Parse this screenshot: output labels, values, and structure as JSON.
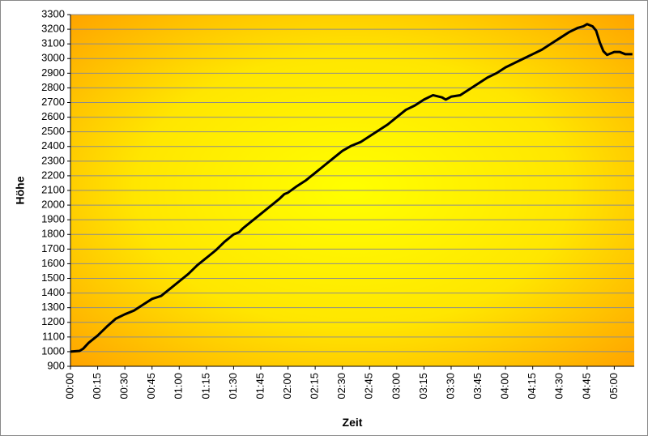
{
  "chart_data": {
    "type": "line",
    "x_label": "Zeit",
    "y_label": "Höhe",
    "x": [
      0,
      5,
      7,
      10,
      15,
      20,
      25,
      30,
      35,
      40,
      45,
      50,
      52,
      55,
      60,
      65,
      70,
      75,
      80,
      85,
      90,
      93,
      95,
      100,
      105,
      110,
      115,
      118,
      120,
      125,
      130,
      135,
      140,
      145,
      150,
      155,
      160,
      165,
      170,
      175,
      180,
      185,
      190,
      195,
      200,
      205,
      207,
      210,
      215,
      220,
      225,
      230,
      235,
      240,
      245,
      250,
      255,
      260,
      265,
      270,
      275,
      280,
      283,
      285,
      288,
      290,
      292,
      294,
      296,
      300,
      303,
      306,
      310
    ],
    "series": [
      {
        "name": "Höhe",
        "color": "#000000",
        "values": [
          1000,
          1005,
          1020,
          1060,
          1110,
          1170,
          1225,
          1255,
          1280,
          1320,
          1360,
          1380,
          1400,
          1430,
          1480,
          1530,
          1590,
          1640,
          1690,
          1750,
          1800,
          1815,
          1840,
          1890,
          1940,
          1990,
          2040,
          2075,
          2085,
          2130,
          2170,
          2220,
          2270,
          2320,
          2370,
          2405,
          2430,
          2470,
          2510,
          2550,
          2600,
          2650,
          2680,
          2720,
          2750,
          2735,
          2720,
          2740,
          2750,
          2790,
          2830,
          2870,
          2900,
          2940,
          2970,
          3000,
          3030,
          3060,
          3100,
          3140,
          3180,
          3210,
          3220,
          3235,
          3220,
          3190,
          3110,
          3050,
          3025,
          3045,
          3045,
          3030,
          3030
        ]
      }
    ],
    "xlim": [
      0,
      311
    ],
    "xticks": [
      {
        "value": 0,
        "label": "00:00"
      },
      {
        "value": 15,
        "label": "00:15"
      },
      {
        "value": 30,
        "label": "00:30"
      },
      {
        "value": 45,
        "label": "00:45"
      },
      {
        "value": 60,
        "label": "01:00"
      },
      {
        "value": 75,
        "label": "01:15"
      },
      {
        "value": 90,
        "label": "01:30"
      },
      {
        "value": 105,
        "label": "01:45"
      },
      {
        "value": 120,
        "label": "02:00"
      },
      {
        "value": 135,
        "label": "02:15"
      },
      {
        "value": 150,
        "label": "02:30"
      },
      {
        "value": 165,
        "label": "02:45"
      },
      {
        "value": 180,
        "label": "03:00"
      },
      {
        "value": 195,
        "label": "03:15"
      },
      {
        "value": 210,
        "label": "03:30"
      },
      {
        "value": 225,
        "label": "03:45"
      },
      {
        "value": 240,
        "label": "04:00"
      },
      {
        "value": 255,
        "label": "04:15"
      },
      {
        "value": 270,
        "label": "04:30"
      },
      {
        "value": 285,
        "label": "04:45"
      },
      {
        "value": 300,
        "label": "05:00"
      }
    ],
    "ylim": [
      900,
      3300
    ],
    "yticks": [
      900,
      1000,
      1100,
      1200,
      1300,
      1400,
      1500,
      1600,
      1700,
      1800,
      1900,
      2000,
      2100,
      2200,
      2300,
      2400,
      2500,
      2600,
      2700,
      2800,
      2900,
      3000,
      3100,
      3200,
      3300
    ],
    "grid": true
  }
}
